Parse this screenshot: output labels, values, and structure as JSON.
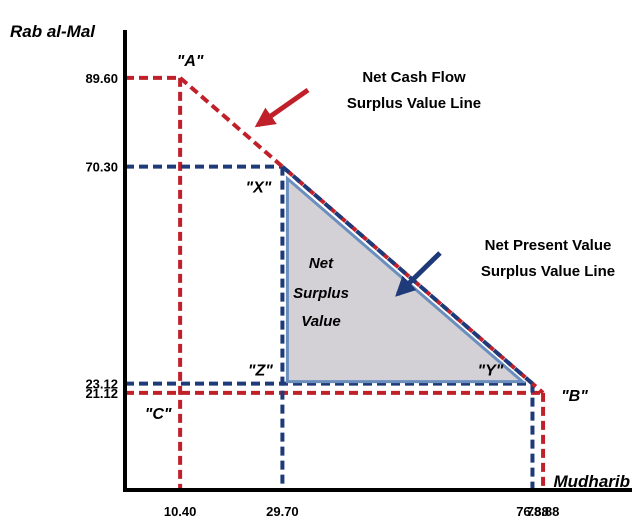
{
  "chart_data": {
    "type": "line",
    "xlabel": "Mudharib",
    "ylabel": "Rab al-Mal",
    "xlim": [
      0,
      90
    ],
    "ylim": [
      0,
      100
    ],
    "x_ticks": [
      {
        "value": 10.4,
        "label": "10.40"
      },
      {
        "value": 29.7,
        "label": "29.70"
      },
      {
        "value": 76.88,
        "label": "76.88"
      },
      {
        "value": 78.88,
        "label": "78.88"
      }
    ],
    "y_ticks": [
      {
        "value": 89.6,
        "label": "89.60"
      },
      {
        "value": 70.3,
        "label": "70.30"
      },
      {
        "value": 23.12,
        "label": "23.12"
      },
      {
        "value": 21.12,
        "label": "21.12"
      }
    ],
    "points": [
      {
        "id": "A",
        "label": "\"A\"",
        "x": 10.4,
        "y": 89.6
      },
      {
        "id": "B",
        "label": "\"B\"",
        "x": 78.88,
        "y": 21.12
      },
      {
        "id": "C",
        "label": "\"C\"",
        "x": 10.4,
        "y": 21.12
      },
      {
        "id": "X",
        "label": "\"X\"",
        "x": 29.7,
        "y": 70.3
      },
      {
        "id": "Y",
        "label": "\"Y\"",
        "x": 76.88,
        "y": 23.12
      },
      {
        "id": "Z",
        "label": "\"Z\"",
        "x": 29.7,
        "y": 23.12
      }
    ],
    "series": [
      {
        "name": "Net Cash Flow Surplus Value Line",
        "color": "#c0202a",
        "x": [
          10.4,
          78.88
        ],
        "y": [
          89.6,
          21.12
        ]
      },
      {
        "name": "Net Present Value Surplus Value Line",
        "color": "#1f3a78",
        "x": [
          29.7,
          76.88
        ],
        "y": [
          70.3,
          23.12
        ]
      }
    ],
    "annotations": {
      "ncf_line1": "Net Cash Flow",
      "ncf_line2": "Surplus Value Line",
      "npv_line1": "Net Present Value",
      "npv_line2": "Surplus Value Line",
      "center_line1": "Net",
      "center_line2": "Surplus",
      "center_line3": "Value"
    },
    "colors": {
      "ncf": "#c0202a",
      "npv": "#1f3a78",
      "fill": "#d3d0d6",
      "fill_edge": "#6a8fbf",
      "axis": "#000000"
    }
  }
}
